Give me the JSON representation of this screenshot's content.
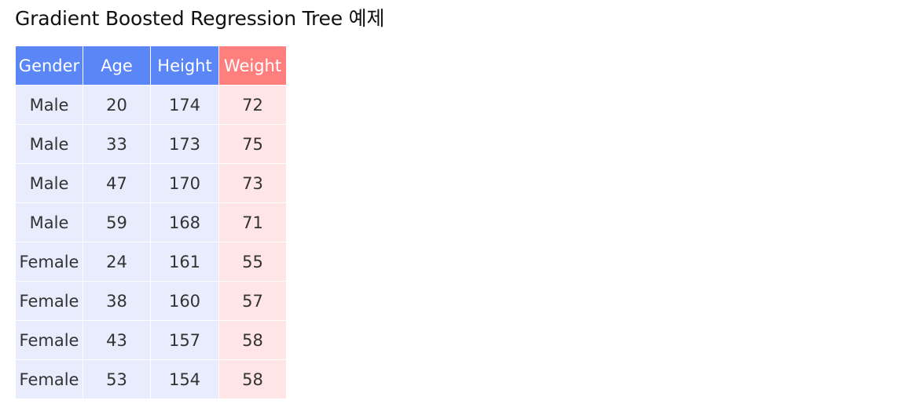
{
  "page": {
    "title": "Gradient Boosted Regression Tree 예제"
  },
  "table": {
    "columns": [
      "Gender",
      "Age",
      "Height",
      "Weight"
    ],
    "rows": [
      [
        "Male",
        "20",
        "174",
        "72"
      ],
      [
        "Male",
        "33",
        "173",
        "75"
      ],
      [
        "Male",
        "47",
        "170",
        "73"
      ],
      [
        "Male",
        "59",
        "168",
        "71"
      ],
      [
        "Female",
        "24",
        "161",
        "55"
      ],
      [
        "Female",
        "38",
        "160",
        "57"
      ],
      [
        "Female",
        "43",
        "157",
        "58"
      ],
      [
        "Female",
        "53",
        "154",
        "58"
      ]
    ]
  },
  "colors": {
    "header_feature": "#5b86f8",
    "header_target": "#ff7f7f",
    "cell_feature": "#e8ecfd",
    "cell_target": "#ffe5e5"
  }
}
